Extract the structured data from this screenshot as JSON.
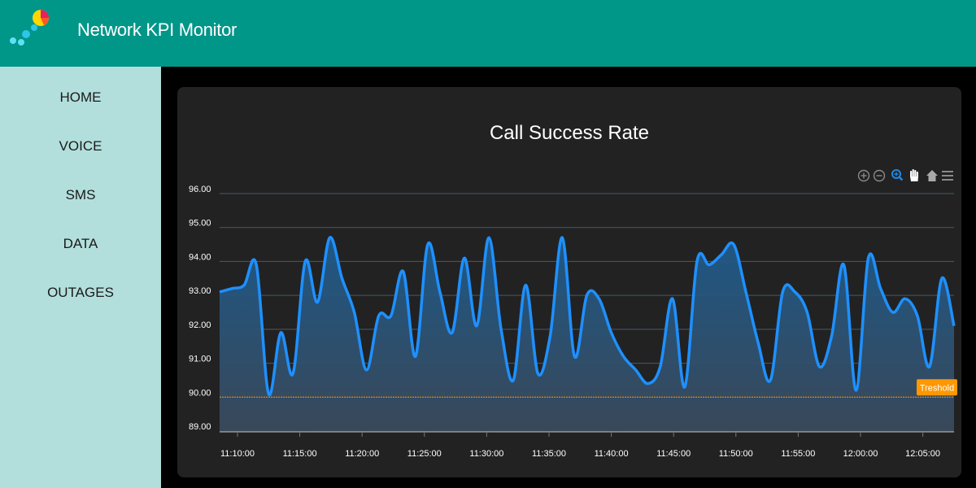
{
  "app": {
    "title": "Network KPI Monitor"
  },
  "sidebar": {
    "items": [
      {
        "label": "HOME"
      },
      {
        "label": "VOICE"
      },
      {
        "label": "SMS"
      },
      {
        "label": "DATA"
      },
      {
        "label": "OUTAGES"
      }
    ]
  },
  "toolbar": {
    "icons": [
      "zoom-in-icon",
      "zoom-out-icon",
      "zoom-selection-icon",
      "pan-hand-icon",
      "reset-home-icon",
      "menu-icon"
    ]
  },
  "colors": {
    "header": "#009688",
    "sidebar": "#b2dfdb",
    "line": "#1e90ff",
    "threshold": "#ff9800",
    "panel": "#222222"
  },
  "chart_data": {
    "type": "area",
    "title": "Call Success Rate",
    "xlabel": "",
    "ylabel": "",
    "ylim": [
      89,
      96
    ],
    "yticks": [
      "96.00",
      "95.00",
      "94.00",
      "93.00",
      "92.00",
      "91.00",
      "90.00",
      "89.00"
    ],
    "xticks": [
      "11:10:00",
      "11:15:00",
      "11:20:00",
      "11:25:00",
      "11:30:00",
      "11:35:00",
      "11:40:00",
      "11:45:00",
      "11:50:00",
      "11:55:00",
      "12:00:00",
      "12:05:00"
    ],
    "x_start": "11:08:00",
    "x_end": "11:07:00+1h",
    "threshold": {
      "value": 90,
      "label": "Treshold"
    },
    "grid": true,
    "series": [
      {
        "values": [
          93.1,
          93.2,
          93.3,
          93.9,
          90.1,
          91.9,
          90.7,
          94.0,
          92.8,
          94.7,
          93.5,
          92.5,
          90.8,
          92.4,
          92.4,
          93.7,
          91.2,
          94.5,
          93.1,
          91.9,
          94.1,
          92.1,
          94.7,
          92.0,
          90.5,
          93.3,
          90.7,
          91.8,
          94.7,
          91.2,
          93.0,
          92.9,
          91.9,
          91.2,
          90.8,
          90.4,
          90.9,
          92.9,
          90.3,
          94.0,
          93.9,
          94.2,
          94.5,
          93.1,
          91.6,
          90.5,
          93.1,
          93.1,
          92.5,
          90.9,
          91.8,
          93.9,
          90.2,
          94.1,
          93.2,
          92.5,
          92.9,
          92.4,
          90.9,
          93.5,
          92.1
        ]
      }
    ]
  }
}
